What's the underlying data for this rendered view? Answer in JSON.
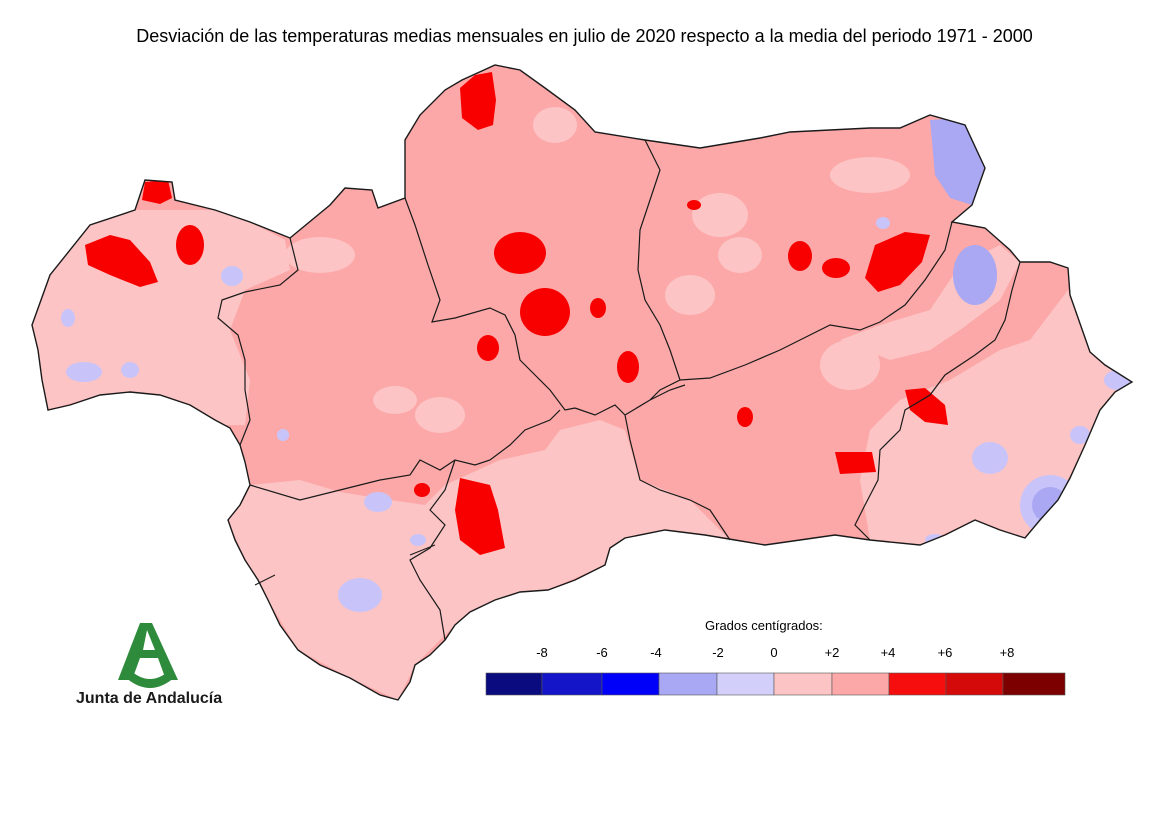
{
  "title": "Desviación de las temperaturas medias mensuales en julio de 2020 respecto a la media del periodo 1971 - 2000",
  "legend": {
    "title": "Grados centígrados:",
    "tick_labels": [
      "-8",
      "-6",
      "-4",
      "-2",
      "0",
      "+2",
      "+4",
      "+6",
      "+8"
    ],
    "bins": [
      {
        "color": "#0b0b80"
      },
      {
        "color": "#1414c8"
      },
      {
        "color": "#0000fa"
      },
      {
        "color": "#a8a8f4"
      },
      {
        "color": "#d2d0fa"
      },
      {
        "color": "#fcc4c4"
      },
      {
        "color": "#fca8a8"
      },
      {
        "color": "#f60d0d"
      },
      {
        "color": "#d40a0a"
      },
      {
        "color": "#7c0000"
      }
    ]
  },
  "map_colors": {
    "base": "#fca8a8",
    "light": "#fcc4c4",
    "hot": "#f80000",
    "cool": "#c8c4fa",
    "cooler": "#aaa8f2",
    "border": "#1a1a1a"
  },
  "logo": {
    "name": "Junta de Andalucía",
    "icon": "junta-andalucia-logo",
    "green": "#2e8b3c"
  }
}
